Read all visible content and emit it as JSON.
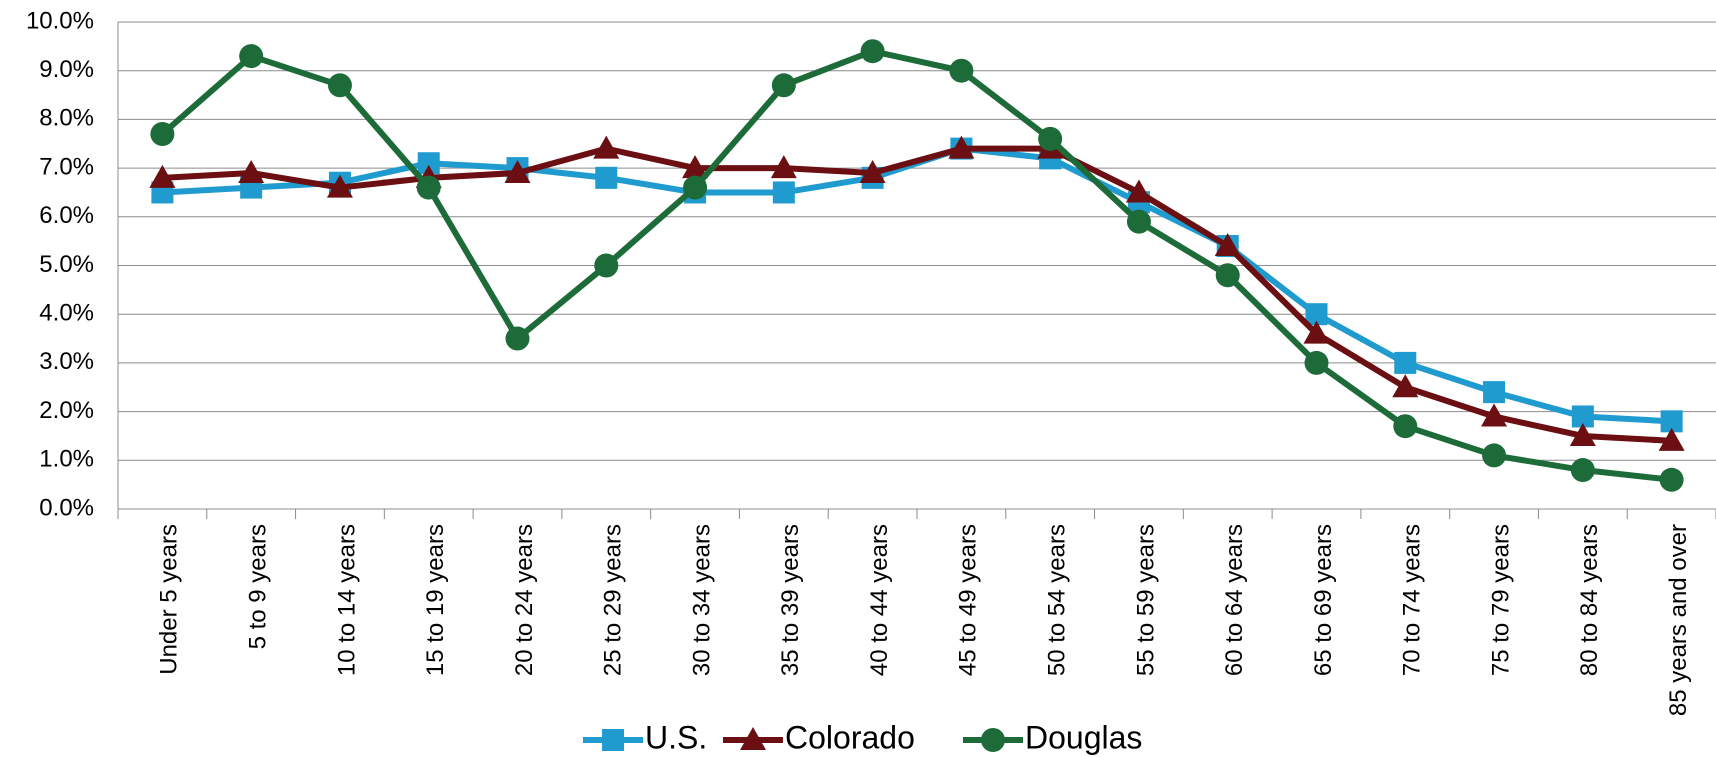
{
  "chart_data": {
    "type": "line",
    "categories": [
      "Under 5 years",
      "5 to 9 years",
      "10 to 14 years",
      "15 to 19 years",
      "20 to 24 years",
      "25 to 29 years",
      "30 to 34 years",
      "35 to 39 years",
      "40 to 44 years",
      "45 to 49 years",
      "50 to 54 years",
      "55 to 59 years",
      "60 to 64 years",
      "65 to 69 years",
      "70 to 74 years",
      "75 to 79 years",
      "80 to 84 years",
      "85 years and over"
    ],
    "series": [
      {
        "name": "U.S.",
        "color": "#1f9bcf",
        "marker": "square",
        "values": [
          6.5,
          6.6,
          6.7,
          7.1,
          7.0,
          6.8,
          6.5,
          6.5,
          6.8,
          7.4,
          7.2,
          6.3,
          5.4,
          4.0,
          3.0,
          2.4,
          1.9,
          1.8
        ]
      },
      {
        "name": "Colorado",
        "color": "#6b0f12",
        "marker": "triangle",
        "values": [
          6.8,
          6.9,
          6.6,
          6.8,
          6.9,
          7.4,
          7.0,
          7.0,
          6.9,
          7.4,
          7.4,
          6.5,
          5.4,
          3.6,
          2.5,
          1.9,
          1.5,
          1.4
        ]
      },
      {
        "name": "Douglas",
        "color": "#1e6b3a",
        "marker": "circle",
        "values": [
          7.7,
          9.3,
          8.7,
          6.6,
          3.5,
          5.0,
          6.6,
          8.7,
          9.4,
          9.0,
          7.6,
          5.9,
          4.8,
          3.0,
          1.7,
          1.1,
          0.8,
          0.6
        ]
      }
    ],
    "ylim": [
      0,
      10
    ],
    "yticks": [
      {
        "value": 0,
        "label": "0.0%"
      },
      {
        "value": 1,
        "label": "1.0%"
      },
      {
        "value": 2,
        "label": "2.0%"
      },
      {
        "value": 3,
        "label": "3.0%"
      },
      {
        "value": 4,
        "label": "4.0%"
      },
      {
        "value": 5,
        "label": "5.0%"
      },
      {
        "value": 6,
        "label": "6.0%"
      },
      {
        "value": 7,
        "label": "7.0%"
      },
      {
        "value": 8,
        "label": "8.0%"
      },
      {
        "value": 9,
        "label": "9.0%"
      },
      {
        "value": 10,
        "label": "10.0%"
      }
    ],
    "grid": true,
    "legend": "bottom"
  }
}
